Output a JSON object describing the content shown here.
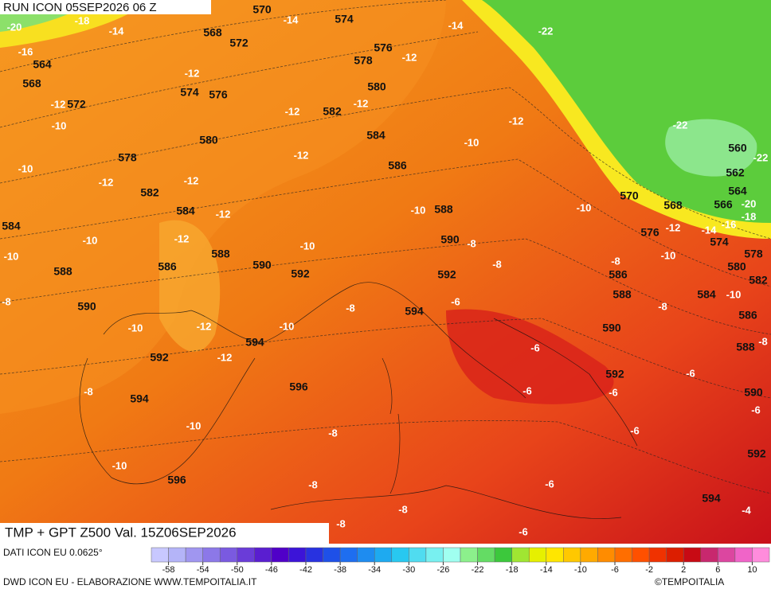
{
  "header": {
    "run": "RUN ICON 05SEP2026 06 Z",
    "field": "TMP + GPT Z500 Val. 15Z06SEP2026"
  },
  "footer": {
    "data_source": "DATI ICON EU 0.0625°",
    "credit": "DWD ICON EU - ELABORAZIONE WWW.TEMPOITALIA.IT",
    "copyright": "©TEMPOITALIA"
  },
  "map": {
    "geopotential_labels": [
      570,
      574,
      568,
      572,
      576,
      578,
      564,
      568,
      580,
      574,
      576,
      572,
      582,
      584,
      580,
      578,
      586,
      582,
      584,
      588,
      584,
      590,
      586,
      588,
      590,
      592,
      588,
      592,
      590,
      594,
      592,
      594,
      594,
      596,
      596,
      570,
      568,
      566,
      564,
      562,
      560,
      576,
      574,
      578,
      580,
      582,
      586,
      588,
      584,
      586,
      588,
      590,
      592,
      590,
      592,
      594
    ],
    "temperature_labels": [
      -20,
      -18,
      -14,
      -16,
      -14,
      -14,
      -22,
      -12,
      -12,
      -12,
      -12,
      -10,
      -12,
      -12,
      -22,
      -10,
      -12,
      -10,
      -12,
      -12,
      -12,
      -10,
      -10,
      -12,
      -10,
      -10,
      -10,
      -12,
      -14,
      -16,
      -20,
      -18,
      -22,
      -8,
      -8,
      -8,
      -10,
      -10,
      -8,
      -8,
      -6,
      -8,
      -10,
      -12,
      -10,
      -12,
      -6,
      -8,
      -6,
      -8,
      -6,
      -6,
      -6,
      -10,
      -8,
      -6,
      -10,
      -8,
      -6,
      -8,
      -8,
      -6,
      -4
    ]
  },
  "colorbar": {
    "ticks": [
      -58,
      -54,
      -50,
      -46,
      -42,
      -38,
      -34,
      -30,
      -26,
      -22,
      -18,
      -14,
      -10,
      -6,
      -2,
      2,
      6,
      10
    ],
    "colors": [
      "#c8c8ff",
      "#b4b4f8",
      "#a096f0",
      "#8c78e8",
      "#7a5ae0",
      "#6a3cd8",
      "#5a1ed0",
      "#5000c8",
      "#3c14d8",
      "#2832e0",
      "#1e50e8",
      "#1e6ef0",
      "#1e8cf0",
      "#1eaaf0",
      "#28c8f0",
      "#50dcf0",
      "#78f0f0",
      "#a0fff0",
      "#8cf08c",
      "#64dc64",
      "#3cc83c",
      "#a0e632",
      "#e6f000",
      "#ffe600",
      "#ffc800",
      "#ffaa00",
      "#ff8c00",
      "#ff6e00",
      "#ff5000",
      "#f03200",
      "#dc1e00",
      "#c80a14",
      "#c8286e",
      "#dc46a0",
      "#f064c8",
      "#ff8cdc"
    ]
  }
}
